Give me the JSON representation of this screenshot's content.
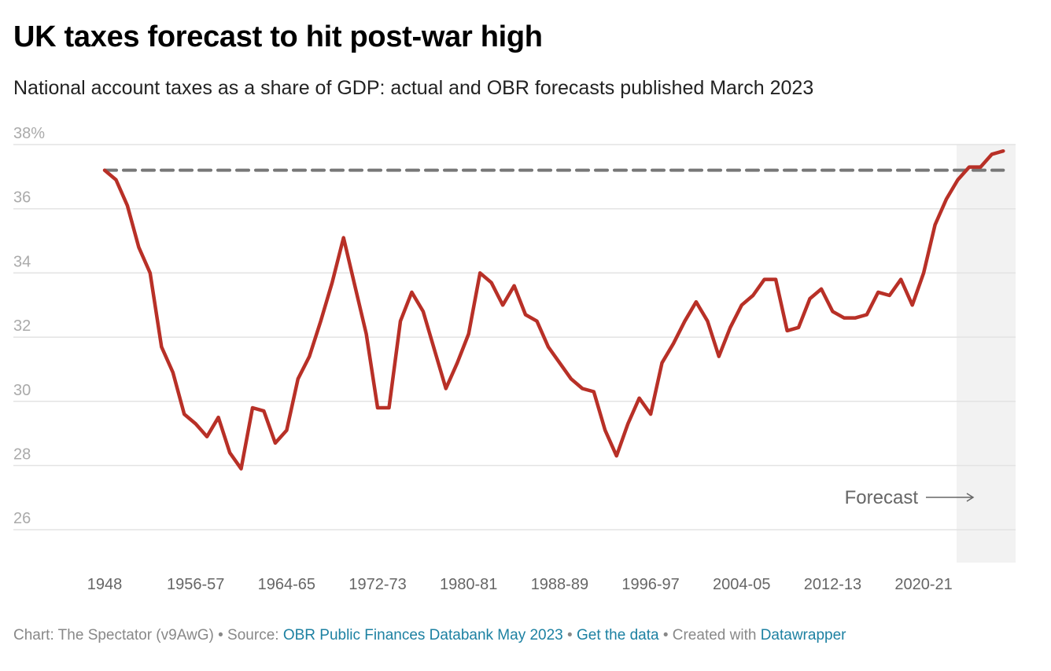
{
  "header": {
    "title": "UK taxes forecast to hit post-war high",
    "subtitle": "National account taxes as a share of GDP: actual and OBR forecasts published March 2023"
  },
  "chart_data": {
    "type": "line",
    "title": "UK taxes forecast to hit post-war high",
    "subtitle": "National account taxes as a share of GDP: actual and OBR forecasts published March 2023",
    "xlabel": "",
    "ylabel": "",
    "first_year": 1948,
    "ylim": [
      25,
      38
    ],
    "grid": true,
    "y_ticks": [
      {
        "value": 38,
        "label": "38%"
      },
      {
        "value": 36,
        "label": "36"
      },
      {
        "value": 34,
        "label": "34"
      },
      {
        "value": 32,
        "label": "32"
      },
      {
        "value": 30,
        "label": "30"
      },
      {
        "value": 28,
        "label": "28"
      },
      {
        "value": 26,
        "label": "26"
      }
    ],
    "x_ticks": [
      {
        "index": 0,
        "label": "1948"
      },
      {
        "index": 8,
        "label": "1956-57"
      },
      {
        "index": 16,
        "label": "1964-65"
      },
      {
        "index": 24,
        "label": "1972-73"
      },
      {
        "index": 32,
        "label": "1980-81"
      },
      {
        "index": 40,
        "label": "1988-89"
      },
      {
        "index": 48,
        "label": "1996-97"
      },
      {
        "index": 56,
        "label": "2004-05"
      },
      {
        "index": 64,
        "label": "2012-13"
      },
      {
        "index": 72,
        "label": "2020-21"
      }
    ],
    "series": [
      {
        "name": "Taxes as share of GDP",
        "color": "#b83027",
        "values": [
          37.2,
          36.9,
          36.1,
          34.8,
          34.0,
          31.7,
          30.9,
          29.6,
          29.3,
          28.9,
          29.5,
          28.4,
          27.9,
          29.8,
          29.7,
          28.7,
          29.1,
          30.7,
          31.4,
          32.5,
          33.7,
          35.1,
          33.6,
          32.1,
          29.8,
          29.8,
          32.5,
          33.4,
          32.8,
          31.6,
          30.4,
          31.2,
          32.1,
          34.0,
          33.7,
          33.0,
          33.6,
          32.7,
          32.5,
          31.7,
          31.2,
          30.7,
          30.4,
          30.3,
          29.1,
          28.3,
          29.3,
          30.1,
          29.6,
          31.2,
          31.8,
          32.5,
          33.1,
          32.5,
          31.4,
          32.3,
          33.0,
          33.3,
          33.8,
          33.8,
          32.2,
          32.3,
          33.2,
          33.5,
          32.8,
          32.6,
          32.6,
          32.7,
          33.4,
          33.3,
          33.8,
          33.0,
          34.0,
          35.5,
          36.3,
          36.9,
          37.3,
          37.3,
          37.7,
          37.8
        ]
      }
    ],
    "reference_line": {
      "value": 37.2,
      "style": "dashed",
      "color": "#777777"
    },
    "forecast_region": {
      "start_index": 74.9,
      "label": "Forecast",
      "color": "#f2f2f2"
    }
  },
  "footer": {
    "credit": "Chart: The Spectator (v9AwG) • Source: ",
    "source_link": "OBR Public Finances Databank May 2023",
    "sep1": " • ",
    "data_link": "Get the data",
    "sep2": " • Created with ",
    "tool_link": "Datawrapper"
  }
}
